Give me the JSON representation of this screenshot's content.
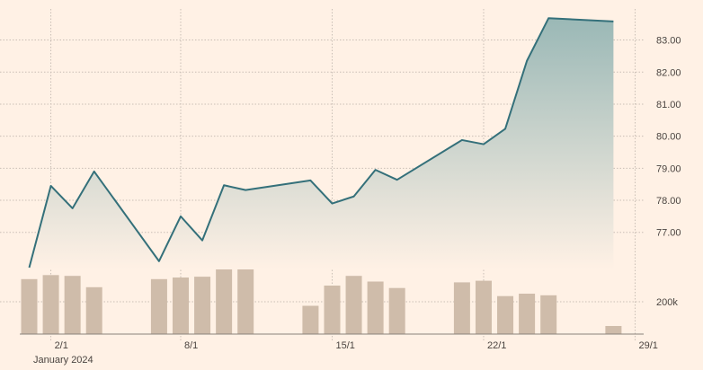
{
  "chart_data": {
    "type": "line",
    "title": "",
    "xlabel": "",
    "ylabel": "",
    "x_axis": {
      "tick_labels": [
        "2/1",
        "8/1",
        "15/1",
        "22/1",
        "29/1"
      ],
      "sub_label": "January 2024"
    },
    "price": {
      "y_ticks": [
        "77.00",
        "78.00",
        "79.00",
        "80.00",
        "81.00",
        "82.00",
        "83.00"
      ],
      "ylim": [
        75.9,
        83.8
      ],
      "x": [
        "2024-01-02",
        "2024-01-03",
        "2024-01-04",
        "2024-01-05",
        "2024-01-08",
        "2024-01-09",
        "2024-01-10",
        "2024-01-11",
        "2024-01-12",
        "2024-01-15",
        "2024-01-16",
        "2024-01-17",
        "2024-01-18",
        "2024-01-19",
        "2024-01-22",
        "2024-01-23",
        "2024-01-24",
        "2024-01-25",
        "2024-01-26",
        "2024-01-29"
      ],
      "values": [
        75.9,
        78.45,
        77.75,
        78.9,
        76.1,
        77.5,
        76.75,
        78.47,
        78.32,
        78.62,
        77.9,
        78.12,
        78.95,
        78.64,
        79.88,
        79.75,
        80.23,
        82.35,
        83.68,
        83.58
      ]
    },
    "volume": {
      "y_ticks": [
        "200k"
      ],
      "ylim": [
        0,
        400000
      ],
      "x": [
        "2024-01-02",
        "2024-01-03",
        "2024-01-04",
        "2024-01-05",
        "2024-01-08",
        "2024-01-09",
        "2024-01-10",
        "2024-01-11",
        "2024-01-12",
        "2024-01-15",
        "2024-01-16",
        "2024-01-17",
        "2024-01-18",
        "2024-01-19",
        "2024-01-22",
        "2024-01-23",
        "2024-01-24",
        "2024-01-25",
        "2024-01-26",
        "2024-01-29"
      ],
      "values": [
        340000,
        365000,
        360000,
        290000,
        340000,
        350000,
        355000,
        405000,
        410000,
        175000,
        300000,
        360000,
        325000,
        285000,
        320000,
        330000,
        235000,
        250000,
        240000,
        50000
      ]
    },
    "colors": {
      "background": "#fff1e5",
      "line": "#34707a",
      "area_top": "#9ab8b6",
      "bar": "#cfbcaa",
      "grid": "#c9beb5",
      "axis_text": "#4a4440"
    },
    "grid": true
  }
}
